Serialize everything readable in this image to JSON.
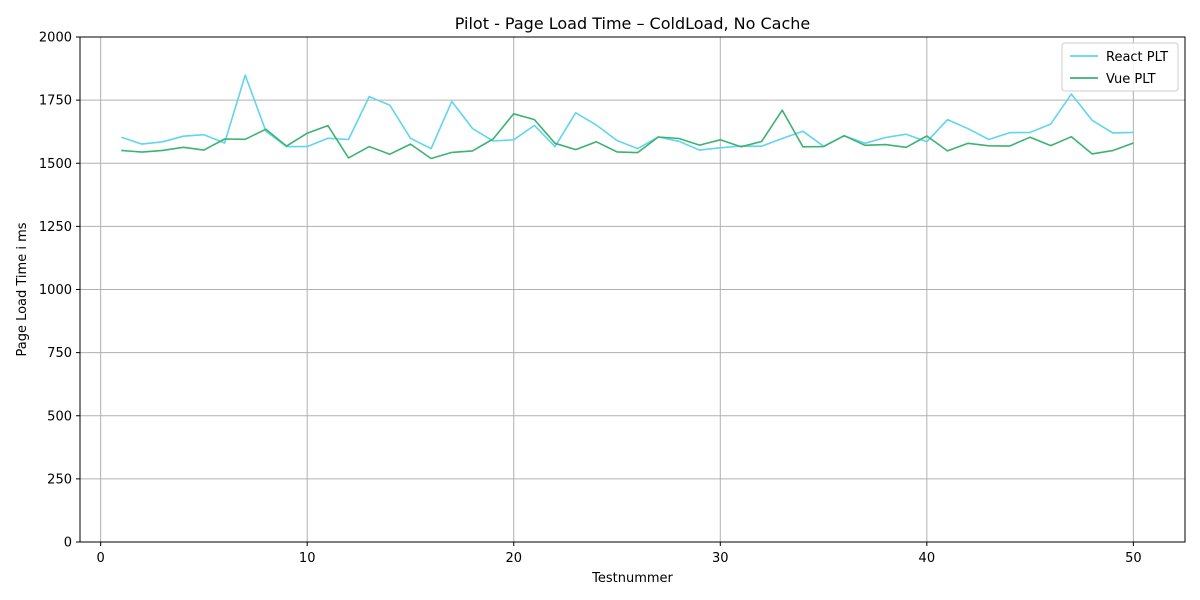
{
  "chart_data": {
    "type": "line",
    "title": "Pilot - Page Load Time – ColdLoad, No Cache",
    "xlabel": "Testnummer",
    "ylabel": "Page Load Time i ms",
    "xlim": [
      -1,
      52.5
    ],
    "ylim": [
      0,
      2000
    ],
    "xticks": [
      0,
      10,
      20,
      30,
      40,
      50
    ],
    "yticks": [
      0,
      250,
      500,
      750,
      1000,
      1250,
      1500,
      1750,
      2000
    ],
    "grid": true,
    "legend_position": "top-right",
    "x": [
      1,
      2,
      3,
      4,
      5,
      6,
      7,
      8,
      9,
      10,
      11,
      12,
      13,
      14,
      15,
      16,
      17,
      18,
      19,
      20,
      21,
      22,
      23,
      24,
      25,
      26,
      27,
      28,
      29,
      30,
      31,
      32,
      33,
      34,
      35,
      36,
      37,
      38,
      39,
      40,
      41,
      42,
      43,
      44,
      45,
      46,
      47,
      48,
      49,
      50
    ],
    "series": [
      {
        "name": "React PLT",
        "color": "#5fd6ee",
        "values": [
          1603,
          1576,
          1585,
          1607,
          1613,
          1580,
          1849,
          1627,
          1566,
          1566,
          1599,
          1594,
          1764,
          1730,
          1599,
          1558,
          1745,
          1638,
          1588,
          1593,
          1650,
          1566,
          1700,
          1651,
          1590,
          1558,
          1604,
          1587,
          1552,
          1561,
          1568,
          1567,
          1598,
          1627,
          1567,
          1609,
          1579,
          1602,
          1615,
          1585,
          1673,
          1637,
          1594,
          1621,
          1622,
          1655,
          1774,
          1670,
          1620,
          1622
        ]
      },
      {
        "name": "Vue PLT",
        "color": "#3cb371",
        "values": [
          1551,
          1544,
          1551,
          1563,
          1552,
          1596,
          1595,
          1635,
          1568,
          1619,
          1649,
          1521,
          1566,
          1536,
          1576,
          1519,
          1543,
          1549,
          1596,
          1696,
          1673,
          1579,
          1554,
          1585,
          1545,
          1542,
          1604,
          1598,
          1572,
          1593,
          1565,
          1586,
          1710,
          1565,
          1566,
          1609,
          1571,
          1574,
          1563,
          1608,
          1549,
          1579,
          1569,
          1568,
          1603,
          1570,
          1605,
          1537,
          1550,
          1580
        ]
      }
    ]
  }
}
